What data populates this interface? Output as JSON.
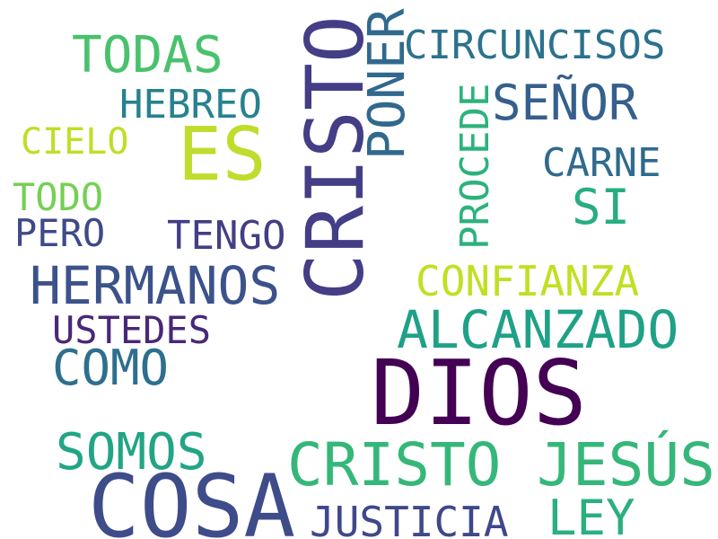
{
  "words": [
    {
      "text": "CRISTO",
      "color": "#433e85",
      "orientation": "vertical"
    },
    {
      "text": "DIOS",
      "color": "#440154",
      "orientation": "horizontal"
    },
    {
      "text": "COSA",
      "color": "#3e4c8a",
      "orientation": "horizontal"
    },
    {
      "text": "ES",
      "color": "#c0dc2c",
      "orientation": "horizontal"
    },
    {
      "text": "CRISTO JESÚS",
      "color": "#35b779",
      "orientation": "horizontal"
    },
    {
      "text": "ALCANZADO",
      "color": "#1fa187",
      "orientation": "horizontal"
    },
    {
      "text": "HERMANOS",
      "color": "#3b528b",
      "orientation": "horizontal"
    },
    {
      "text": "PONER",
      "color": "#31688e",
      "orientation": "vertical"
    },
    {
      "text": "TODAS",
      "color": "#4ac16d",
      "orientation": "horizontal"
    },
    {
      "text": "SOMOS",
      "color": "#21a585",
      "orientation": "horizontal"
    },
    {
      "text": "SEÑOR",
      "color": "#355f8d",
      "orientation": "horizontal"
    },
    {
      "text": "CONFIANZA",
      "color": "#c2df23",
      "orientation": "horizontal"
    },
    {
      "text": "COMO",
      "color": "#2d6f8e",
      "orientation": "horizontal"
    },
    {
      "text": "LEY",
      "color": "#2ab07f",
      "orientation": "horizontal"
    },
    {
      "text": "JUSTICIA",
      "color": "#3f4889",
      "orientation": "horizontal"
    },
    {
      "text": "CIRCUNCISOS",
      "color": "#2c728e",
      "orientation": "horizontal"
    },
    {
      "text": "PROCEDE",
      "color": "#2db27d",
      "orientation": "vertical"
    },
    {
      "text": "USTEDES",
      "color": "#482878",
      "orientation": "horizontal"
    },
    {
      "text": "HEBREO",
      "color": "#26828e",
      "orientation": "horizontal"
    },
    {
      "text": "TENGO",
      "color": "#423f85",
      "orientation": "horizontal"
    },
    {
      "text": "SI",
      "color": "#27ad81",
      "orientation": "horizontal"
    },
    {
      "text": "CARNE",
      "color": "#306a8e",
      "orientation": "horizontal"
    },
    {
      "text": "CIELO",
      "color": "#bddf26",
      "orientation": "horizontal"
    },
    {
      "text": "TODO",
      "color": "#75d054",
      "orientation": "horizontal"
    },
    {
      "text": "PERO",
      "color": "#3e4a89",
      "orientation": "horizontal"
    }
  ]
}
